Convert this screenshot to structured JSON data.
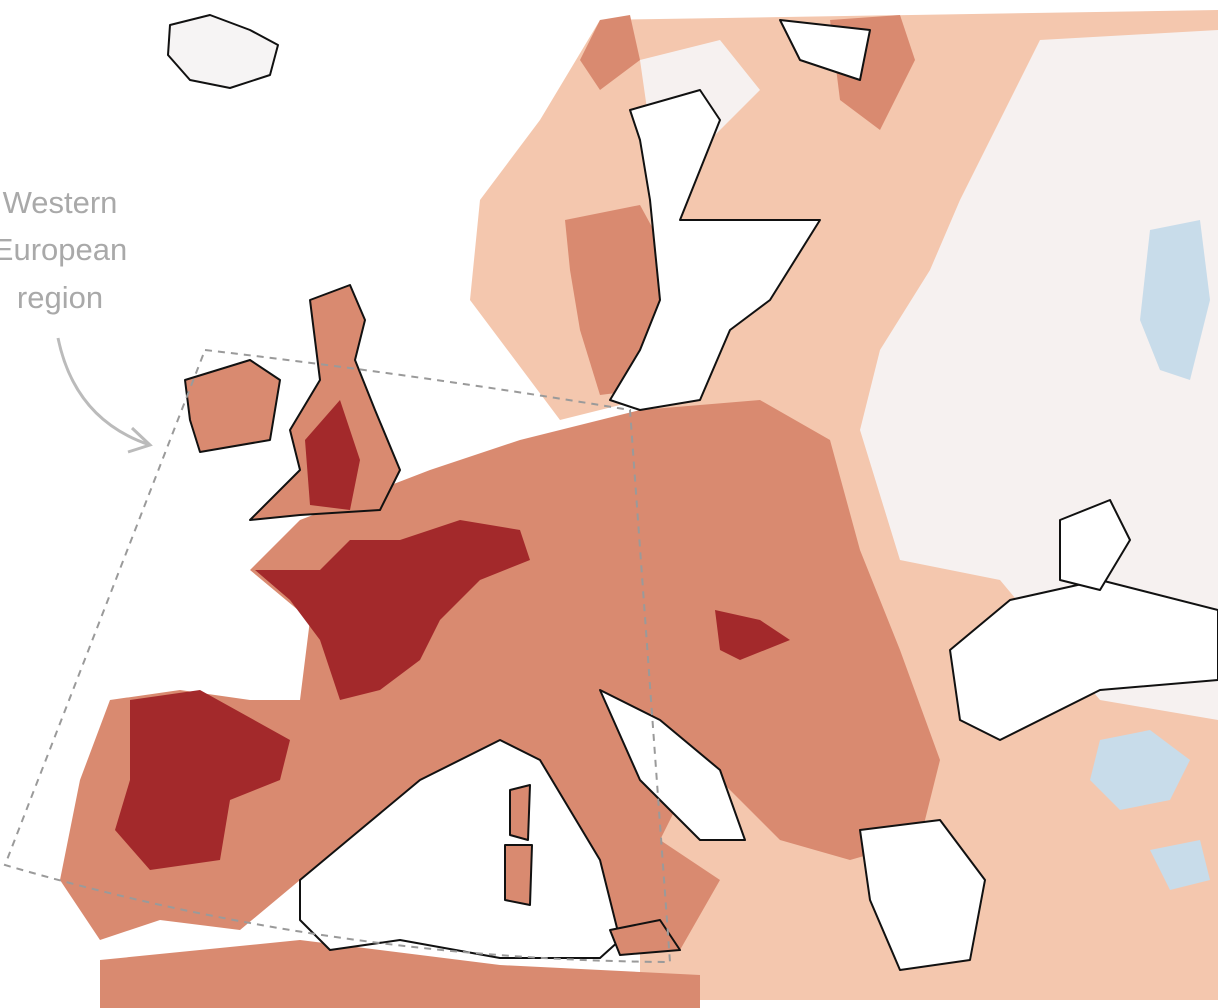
{
  "annotation": {
    "lines": [
      "Western",
      "European",
      "region"
    ]
  }
}
